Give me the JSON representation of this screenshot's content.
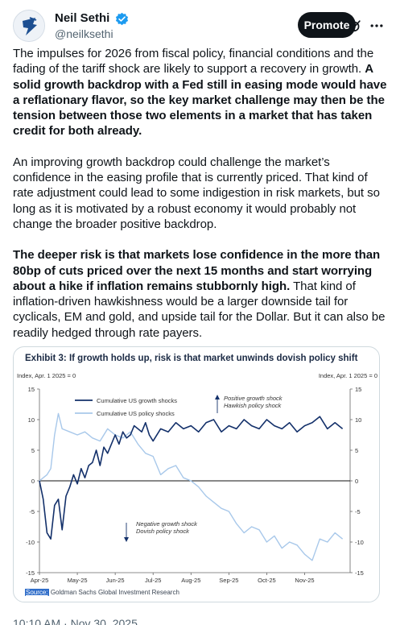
{
  "author": {
    "display_name": "Neil Sethi",
    "handle": "@neilksethi"
  },
  "header": {
    "promote_label": "Promote",
    "icons": [
      "verified-badge-icon",
      "grok-icon",
      "more-icon"
    ]
  },
  "tweet": {
    "p1_plain": "The impulses for 2026 from fiscal policy, financial conditions and the fading of the tariff shock are likely to support a recovery in growth.",
    "p1_bold": "A solid growth backdrop with a Fed still in easing mode would have a reflationary flavor, so the key market challenge may then be the tension between those two elements in a market that has taken credit for both already.",
    "p2": "An improving growth backdrop could challenge the market’s confidence in the easing profile that is currently priced.  That kind of rate adjustment could lead to some indigestion in risk markets, but so long as it is motivated by a robust economy it would probably not change the broader positive backdrop.",
    "p3_bold": "The deeper risk is that markets lose confidence in the more than 80bp of cuts priced over the next 15 months and start worrying about a hike if inflation remains stubbornly high.",
    "p3_plain": "That kind of inflation-driven hawkishness would be a larger downside tail for cyclicals, EM and gold, and upside tail for the Dollar. But it can also be readily hedged through rate payers."
  },
  "chart_card": {
    "title": "Exhibit 3: If growth holds up, risk is that market unwinds dovish policy shift",
    "source_label": "Source:",
    "source_text": "Goldman Sachs Global Investment Research"
  },
  "chart_data": {
    "type": "line",
    "left_axis_label": "Index, Apr. 1 2025 = 0",
    "right_axis_label": "Index, Apr. 1 2025 = 0",
    "ylim": [
      -15,
      15
    ],
    "yticks": [
      15,
      10,
      5,
      0,
      -5,
      -10,
      -15
    ],
    "xtick_labels": [
      "Apr-25",
      "May-25",
      "Jun-25",
      "Jul-25",
      "Aug-25",
      "Sep-25",
      "Oct-25",
      "Nov-25"
    ],
    "xlim_months": [
      0,
      8.2
    ],
    "legend": [
      "Cumulative US growth shocks",
      "Cumulative US policy shocks"
    ],
    "annotation_up": [
      "Positive growth shock",
      "Hawkish policy shock"
    ],
    "annotation_down": [
      "Negative growth shock",
      "Dovish policy shock"
    ],
    "colors": {
      "growth": "#13306a",
      "policy": "#a8c8ea",
      "zero_line": "#111111"
    },
    "series": [
      {
        "name": "Cumulative US growth shocks",
        "x": [
          0,
          0.1,
          0.2,
          0.3,
          0.4,
          0.5,
          0.6,
          0.7,
          0.8,
          0.9,
          1.0,
          1.1,
          1.2,
          1.3,
          1.4,
          1.5,
          1.6,
          1.7,
          1.8,
          1.9,
          2.0,
          2.1,
          2.2,
          2.3,
          2.4,
          2.5,
          2.6,
          2.7,
          2.8,
          2.9,
          3.0,
          3.2,
          3.4,
          3.6,
          3.8,
          4.0,
          4.2,
          4.4,
          4.6,
          4.8,
          5.0,
          5.2,
          5.4,
          5.6,
          5.8,
          6.0,
          6.2,
          6.4,
          6.6,
          6.8,
          7.0,
          7.2,
          7.4,
          7.6,
          7.8,
          8.0
        ],
        "values": [
          0,
          -3,
          -8.5,
          -9.5,
          -4,
          -3,
          -8,
          -2.5,
          -1,
          1,
          -0.5,
          2,
          0.5,
          2.5,
          3,
          5,
          2.5,
          5.5,
          4.5,
          6,
          7.5,
          6,
          8,
          7,
          7.5,
          9,
          8.5,
          8,
          9.5,
          7.5,
          6.5,
          8.5,
          8,
          9.5,
          8.5,
          9,
          8,
          9.5,
          10,
          8,
          9,
          8.5,
          10,
          9,
          8.5,
          10,
          9,
          8.5,
          9.5,
          8,
          9,
          9.5,
          10.5,
          8.5,
          9.5,
          8.5
        ]
      },
      {
        "name": "Cumulative US policy shocks",
        "x": [
          0,
          0.1,
          0.2,
          0.3,
          0.4,
          0.5,
          0.6,
          0.8,
          1.0,
          1.2,
          1.4,
          1.6,
          1.8,
          2.0,
          2.2,
          2.4,
          2.6,
          2.8,
          3.0,
          3.2,
          3.4,
          3.6,
          3.8,
          4.0,
          4.2,
          4.4,
          4.6,
          4.8,
          5.0,
          5.2,
          5.4,
          5.6,
          5.8,
          6.0,
          6.2,
          6.4,
          6.6,
          6.8,
          7.0,
          7.2,
          7.4,
          7.6,
          7.8,
          8.0
        ],
        "values": [
          0,
          0.5,
          1,
          2,
          7.5,
          11,
          8.5,
          8,
          7.5,
          8,
          7,
          6.5,
          8.5,
          7.5,
          7,
          8,
          6,
          4.5,
          4,
          1,
          2,
          2.5,
          0.5,
          0,
          -1,
          -2.5,
          -3.5,
          -4.5,
          -5,
          -7,
          -8.5,
          -7.5,
          -8,
          -10,
          -9,
          -11,
          -10,
          -10.5,
          -12,
          -13,
          -9.5,
          -10,
          -8.5,
          -9.5
        ]
      }
    ]
  },
  "timestamp": "10:10 AM · Nov 30, 2025"
}
